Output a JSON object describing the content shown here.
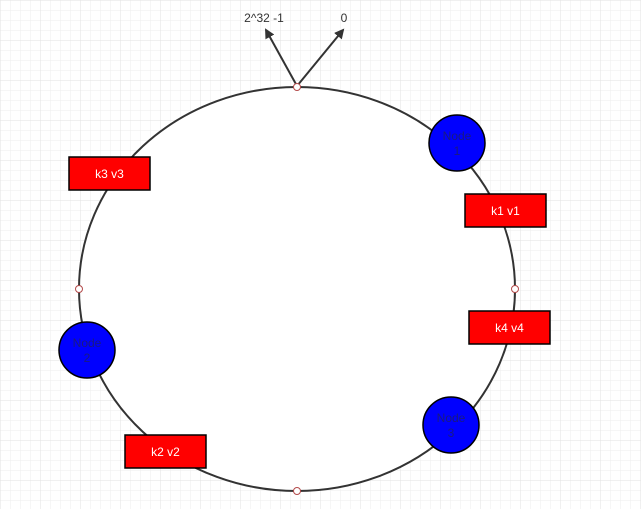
{
  "diagram": {
    "arrow_labels": {
      "max": "2^32 -1",
      "zero": "0"
    },
    "nodes": [
      {
        "label_line1": "Node",
        "label_line2": "1"
      },
      {
        "label_line1": "Node",
        "label_line2": "2"
      },
      {
        "label_line1": "Node",
        "label_line2": "3"
      }
    ],
    "keys": [
      {
        "label": "k1 v1"
      },
      {
        "label": "k2 v2"
      },
      {
        "label": "k3 v3"
      },
      {
        "label": "k4 v4"
      }
    ],
    "colors": {
      "grid": "#e8e8e8",
      "ring": "#333333",
      "node_fill": "#0000ff",
      "node_text": "#1a1a80",
      "key_fill": "#ff0000",
      "key_text": "#ffffff",
      "outline": "#000000",
      "arrow": "#333333",
      "handle": "#b34a4a"
    }
  }
}
